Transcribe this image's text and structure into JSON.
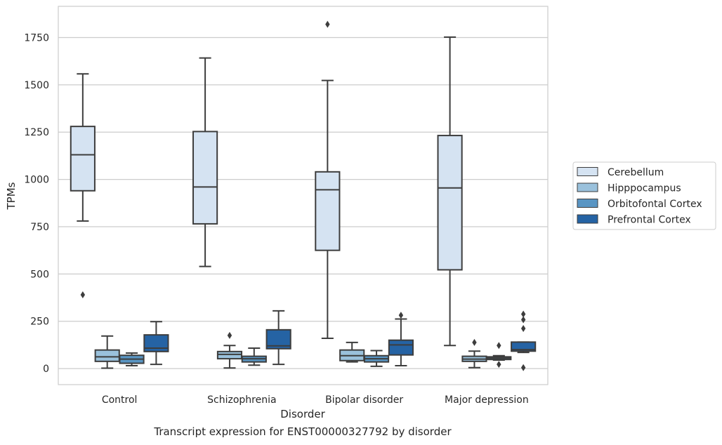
{
  "caption": "Transcript expression for ENST00000327792 by disorder",
  "chart_data": {
    "type": "boxplot",
    "xlabel": "Disorder",
    "ylabel": "TPMs",
    "ylim": [
      -85,
      1915
    ],
    "yticks": [
      0,
      250,
      500,
      750,
      1000,
      1250,
      1500,
      1750
    ],
    "grid": "horizontal",
    "legend_position": "right",
    "categories": [
      "Control",
      "Schizophrenia",
      "Bipolar disorder",
      "Major depression"
    ],
    "series": [
      {
        "name": "Cerebellum",
        "color": "#d5e3f2",
        "boxes": [
          {
            "whislo": 780,
            "q1": 940,
            "med": 1130,
            "q3": 1280,
            "whishi": 1558,
            "fliers": [
              390
            ]
          },
          {
            "whislo": 540,
            "q1": 765,
            "med": 960,
            "q3": 1253,
            "whishi": 1642,
            "fliers": []
          },
          {
            "whislo": 160,
            "q1": 625,
            "med": 945,
            "q3": 1040,
            "whishi": 1523,
            "fliers": [
              1820
            ]
          },
          {
            "whislo": 122,
            "q1": 522,
            "med": 955,
            "q3": 1232,
            "whishi": 1752,
            "fliers": []
          }
        ]
      },
      {
        "name": "Hipppocampus",
        "color": "#9ac1dc",
        "boxes": [
          {
            "whislo": 2,
            "q1": 38,
            "med": 62,
            "q3": 98,
            "whishi": 172,
            "fliers": []
          },
          {
            "whislo": 3,
            "q1": 52,
            "med": 75,
            "q3": 90,
            "whishi": 122,
            "fliers": [
              175
            ]
          },
          {
            "whislo": 35,
            "q1": 42,
            "med": 68,
            "q3": 98,
            "whishi": 138,
            "fliers": []
          },
          {
            "whislo": 5,
            "q1": 38,
            "med": 50,
            "q3": 65,
            "whishi": 92,
            "fliers": [
              138
            ]
          }
        ]
      },
      {
        "name": "Orbitofontal Cortex",
        "color": "#5995c3",
        "boxes": [
          {
            "whislo": 15,
            "q1": 28,
            "med": 50,
            "q3": 70,
            "whishi": 82,
            "fliers": []
          },
          {
            "whislo": 18,
            "q1": 35,
            "med": 52,
            "q3": 65,
            "whishi": 108,
            "fliers": []
          },
          {
            "whislo": 12,
            "q1": 35,
            "med": 52,
            "q3": 68,
            "whishi": 95,
            "fliers": []
          },
          {
            "whislo": 45,
            "q1": 48,
            "med": 55,
            "q3": 62,
            "whishi": 68,
            "fliers": [
              122,
              22
            ]
          }
        ]
      },
      {
        "name": "Prefrontal Cortex",
        "color": "#2563a4",
        "boxes": [
          {
            "whislo": 22,
            "q1": 90,
            "med": 108,
            "q3": 178,
            "whishi": 248,
            "fliers": []
          },
          {
            "whislo": 22,
            "q1": 105,
            "med": 120,
            "q3": 205,
            "whishi": 305,
            "fliers": []
          },
          {
            "whislo": 15,
            "q1": 72,
            "med": 125,
            "q3": 150,
            "whishi": 262,
            "fliers": [
              282
            ]
          },
          {
            "whislo": 85,
            "q1": 92,
            "med": 100,
            "q3": 140,
            "whishi": 140,
            "fliers": [
              288,
              258,
              212,
              5
            ]
          }
        ]
      }
    ]
  }
}
